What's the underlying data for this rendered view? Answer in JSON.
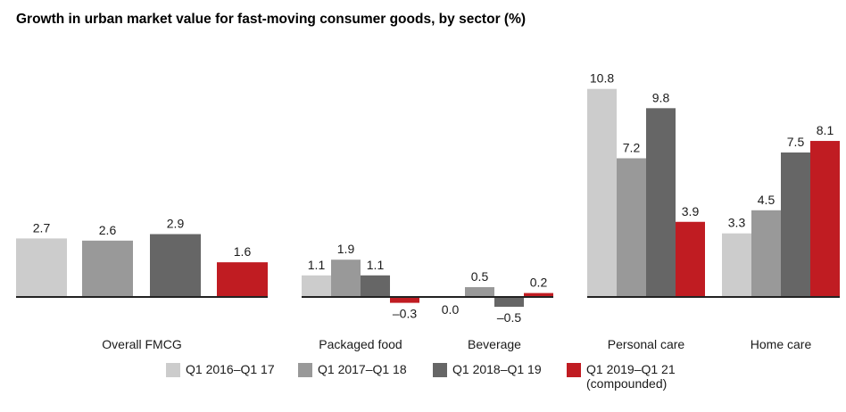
{
  "chart_data": {
    "type": "bar",
    "title": "Growth in urban market value for fast-moving consumer goods, by sector (%)",
    "categories": [
      "Overall FMCG",
      "Packaged food",
      "Beverage",
      "Personal care",
      "Home care"
    ],
    "series": [
      {
        "name": "Q1 2016–Q1 17",
        "color": "#cccccc",
        "values": [
          2.7,
          1.1,
          0.0,
          10.8,
          3.3
        ],
        "labels": [
          "2.7",
          "1.1",
          "0.0",
          "10.8",
          "3.3"
        ]
      },
      {
        "name": "Q1 2017–Q1 18",
        "color": "#999999",
        "values": [
          2.6,
          1.9,
          0.5,
          7.2,
          4.5
        ],
        "labels": [
          "2.6",
          "1.9",
          "0.5",
          "7.2",
          "4.5"
        ]
      },
      {
        "name": "Q1 2018–Q1 19",
        "color": "#666666",
        "values": [
          2.9,
          1.1,
          -0.5,
          9.8,
          7.5
        ],
        "labels": [
          "2.9",
          "1.1",
          "–0.5",
          "9.8",
          "7.5"
        ]
      },
      {
        "name": "Q1 2019–Q1 21",
        "name_note": "(compounded)",
        "color": "#c01c22",
        "values": [
          1.6,
          -0.3,
          0.2,
          3.9,
          8.1
        ],
        "labels": [
          "1.6",
          "–0.3",
          "0.2",
          "3.9",
          "8.1"
        ]
      }
    ],
    "xlabel": "",
    "ylabel": "",
    "grid": false,
    "legend": "bottom"
  }
}
